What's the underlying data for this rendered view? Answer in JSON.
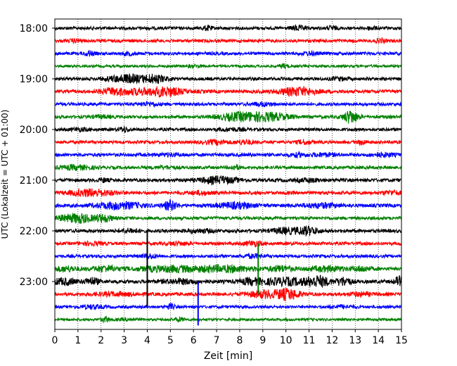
{
  "chart_data": {
    "type": "line",
    "title": "",
    "xlabel": "Zeit  [min]",
    "ylabel": "UTC (Lokalzeit = UTC + 01:00)",
    "xlim": [
      0,
      15
    ],
    "x_ticks": [
      "0",
      "1",
      "2",
      "3",
      "4",
      "5",
      "6",
      "7",
      "8",
      "9",
      "10",
      "11",
      "12",
      "13",
      "14",
      "15"
    ],
    "y_tick_labels": [
      "18:00",
      "19:00",
      "20:00",
      "21:00",
      "22:00",
      "23:00"
    ],
    "grid_x": true,
    "trace_interval_min": 15,
    "traces": [
      {
        "start": "18:00",
        "color": "#000000",
        "amp": 2.2,
        "events": [
          [
            6.6,
            1.2,
            0.2
          ],
          [
            10.5,
            1.2,
            0.3
          ],
          [
            12.0,
            1.0,
            0.2
          ],
          [
            13.7,
            1.0,
            0.2
          ]
        ]
      },
      {
        "start": "18:15",
        "color": "#ff0000",
        "amp": 2.2,
        "events": [
          [
            14.1,
            1.0,
            0.2
          ],
          [
            0.9,
            0.8,
            0.3
          ]
        ]
      },
      {
        "start": "18:30",
        "color": "#0000ff",
        "amp": 2.2,
        "events": [
          [
            1.5,
            1.4,
            0.2
          ],
          [
            3.2,
            0.8,
            0.3
          ],
          [
            11.0,
            0.8,
            0.4
          ]
        ]
      },
      {
        "start": "18:45",
        "color": "#008000",
        "amp": 1.8,
        "events": [
          [
            9.9,
            1.2,
            0.2
          ],
          [
            6.0,
            0.6,
            0.4
          ]
        ]
      },
      {
        "start": "19:00",
        "color": "#000000",
        "amp": 2.2,
        "events": [
          [
            3.2,
            2.4,
            0.6
          ],
          [
            4.3,
            2.4,
            0.5
          ],
          [
            2.4,
            0.8,
            0.4
          ],
          [
            12.3,
            0.8,
            0.4
          ]
        ]
      },
      {
        "start": "19:15",
        "color": "#ff0000",
        "amp": 2.4,
        "events": [
          [
            2.6,
            2.0,
            0.6
          ],
          [
            4.7,
            2.8,
            0.8
          ],
          [
            10.5,
            2.4,
            0.8
          ],
          [
            3.6,
            1.2,
            0.4
          ]
        ]
      },
      {
        "start": "19:30",
        "color": "#0000ff",
        "amp": 2.2,
        "events": [
          [
            4.1,
            1.0,
            0.4
          ],
          [
            9.0,
            1.0,
            0.5
          ]
        ]
      },
      {
        "start": "19:45",
        "color": "#008000",
        "amp": 2.2,
        "events": [
          [
            7.9,
            2.2,
            0.8
          ],
          [
            9.2,
            2.4,
            0.9
          ],
          [
            12.8,
            4.0,
            0.3
          ],
          [
            2.0,
            0.8,
            0.4
          ]
        ]
      },
      {
        "start": "20:00",
        "color": "#000000",
        "amp": 2.2,
        "events": [
          [
            3.0,
            1.4,
            0.2
          ],
          [
            1.1,
            0.8,
            0.4
          ],
          [
            7.6,
            0.8,
            0.5
          ]
        ]
      },
      {
        "start": "20:15",
        "color": "#ff0000",
        "amp": 2.2,
        "events": [
          [
            7.0,
            1.2,
            0.5
          ],
          [
            8.2,
            1.2,
            0.4
          ],
          [
            10.8,
            1.2,
            0.3
          ],
          [
            13.3,
            1.2,
            0.2
          ]
        ]
      },
      {
        "start": "20:30",
        "color": "#0000ff",
        "amp": 2.4,
        "events": [
          [
            10.5,
            1.0,
            0.3
          ],
          [
            11.6,
            0.8,
            0.5
          ],
          [
            14.2,
            1.0,
            0.5
          ],
          [
            5.0,
            0.6,
            0.5
          ]
        ]
      },
      {
        "start": "20:45",
        "color": "#008000",
        "amp": 2.2,
        "events": [
          [
            0.9,
            1.2,
            0.7
          ],
          [
            7.8,
            1.4,
            0.2
          ],
          [
            4.8,
            0.6,
            0.5
          ]
        ]
      },
      {
        "start": "21:00",
        "color": "#000000",
        "amp": 2.4,
        "events": [
          [
            7.1,
            2.0,
            0.8
          ],
          [
            2.1,
            1.0,
            0.2
          ],
          [
            11.0,
            0.8,
            0.5
          ]
        ]
      },
      {
        "start": "21:15",
        "color": "#ff0000",
        "amp": 2.4,
        "events": [
          [
            1.6,
            2.0,
            0.9
          ],
          [
            6.3,
            0.8,
            0.5
          ],
          [
            14.6,
            1.0,
            0.4
          ]
        ]
      },
      {
        "start": "21:30",
        "color": "#0000ff",
        "amp": 2.4,
        "events": [
          [
            2.8,
            2.0,
            1.0
          ],
          [
            5.0,
            2.8,
            0.3
          ],
          [
            7.8,
            1.6,
            0.8
          ],
          [
            11.5,
            1.2,
            0.8
          ]
        ]
      },
      {
        "start": "21:45",
        "color": "#008000",
        "amp": 2.2,
        "events": [
          [
            1.1,
            2.6,
            0.5
          ],
          [
            2.1,
            2.2,
            0.4
          ],
          [
            0.4,
            1.2,
            0.5
          ]
        ]
      },
      {
        "start": "22:00",
        "color": "#000000",
        "amp": 2.4,
        "events": [
          [
            3.3,
            1.0,
            0.4
          ],
          [
            9.9,
            1.6,
            0.5
          ],
          [
            10.9,
            2.4,
            0.5
          ],
          [
            6.3,
            0.8,
            0.6
          ]
        ]
      },
      {
        "start": "22:15",
        "color": "#ff0000",
        "amp": 2.2,
        "events": [
          [
            8.6,
            1.4,
            0.4
          ],
          [
            5.3,
            0.8,
            0.5
          ],
          [
            1.6,
            0.8,
            0.5
          ]
        ]
      },
      {
        "start": "22:30",
        "color": "#0000ff",
        "amp": 2.2,
        "events": [
          [
            8.6,
            1.0,
            0.4
          ],
          [
            4.1,
            1.2,
            0.3
          ]
        ]
      },
      {
        "start": "22:45",
        "color": "#008000",
        "amp": 2.4,
        "events": [
          [
            2.2,
            1.6,
            0.5
          ],
          [
            5.1,
            1.6,
            1.6
          ],
          [
            7.5,
            1.6,
            1.2
          ],
          [
            9.8,
            1.6,
            0.5
          ],
          [
            11.8,
            1.4,
            0.8
          ],
          [
            13.3,
            1.4,
            0.4
          ],
          [
            0.5,
            1.4,
            0.5
          ]
        ]
      },
      {
        "start": "23:00",
        "color": "#000000",
        "amp": 2.6,
        "events": [
          [
            0.4,
            1.8,
            0.5
          ],
          [
            1.6,
            2.0,
            0.3
          ],
          [
            8.5,
            1.6,
            0.5
          ],
          [
            10.0,
            2.0,
            1.0
          ],
          [
            11.4,
            3.0,
            0.5
          ],
          [
            12.5,
            2.4,
            0.3
          ],
          [
            14.9,
            2.6,
            0.2
          ],
          [
            5.5,
            1.2,
            0.8
          ]
        ]
      },
      {
        "start": "23:15",
        "color": "#ff0000",
        "amp": 2.4,
        "events": [
          [
            9.1,
            2.0,
            0.7
          ],
          [
            10.1,
            3.0,
            0.5
          ],
          [
            2.6,
            0.8,
            1.0
          ],
          [
            13.2,
            1.0,
            0.5
          ]
        ]
      },
      {
        "start": "23:30",
        "color": "#0000ff",
        "amp": 2.0,
        "events": [
          [
            1.6,
            1.0,
            0.5
          ],
          [
            5.0,
            1.4,
            0.2
          ],
          [
            12.4,
            0.8,
            0.5
          ]
        ]
      },
      {
        "start": "23:45",
        "color": "#008000",
        "amp": 1.8,
        "events": [
          [
            2.2,
            1.4,
            0.2
          ],
          [
            5.4,
            1.2,
            0.2
          ],
          [
            3.2,
            0.6,
            0.4
          ]
        ]
      }
    ],
    "spikes": [
      {
        "x": 4.0,
        "y_from": "22:00",
        "y_to": "23:30",
        "color": "#000000"
      },
      {
        "x": 6.2,
        "y_from": "23:00",
        "y_to": "23:52",
        "color": "#0000ff"
      },
      {
        "x": 8.8,
        "y_from": "22:15",
        "y_to": "23:15",
        "color": "#008000"
      }
    ]
  }
}
